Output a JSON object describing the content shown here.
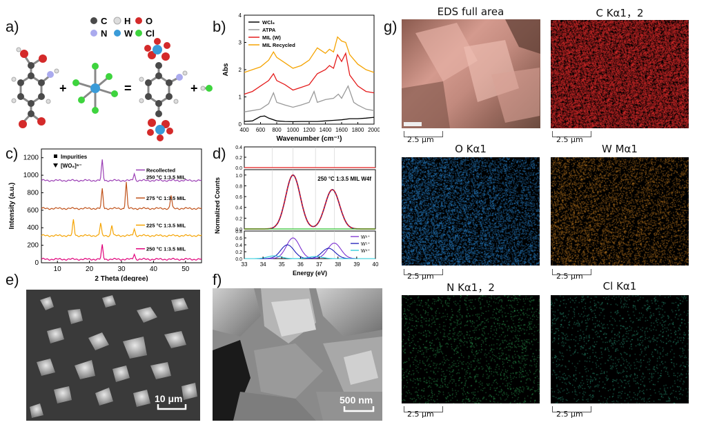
{
  "figure": {
    "panel_a": {
      "label": "a)",
      "legend": [
        {
          "symbol": "C",
          "color": "#4a4a4a"
        },
        {
          "symbol": "H",
          "color": "#e6e6e6"
        },
        {
          "symbol": "O",
          "color": "#d42a2a"
        },
        {
          "symbol": "N",
          "color": "#aaaaee"
        },
        {
          "symbol": "W",
          "color": "#3a9bd8"
        },
        {
          "symbol": "Cl",
          "color": "#3ed43e"
        }
      ],
      "ops": [
        "+",
        "=",
        "+"
      ]
    },
    "panel_b": {
      "label": "b)"
    },
    "panel_c": {
      "label": "c)"
    },
    "panel_d": {
      "label": "d)"
    },
    "panel_e": {
      "label": "e)",
      "scale": "10 μm"
    },
    "panel_f": {
      "label": "f)",
      "scale": "500 nm"
    },
    "panel_g": {
      "label": "g)",
      "maps": [
        {
          "title": "EDS full area",
          "scale": "2.5 μm"
        },
        {
          "title": "C Kα1，2",
          "scale": "2.5 μm"
        },
        {
          "title": "O Kα1",
          "scale": "2.5 μm"
        },
        {
          "title": "W Mα1",
          "scale": "2.5 μm"
        },
        {
          "title": "N Kα1，2",
          "scale": "2.5 μm"
        },
        {
          "title": "Cl Kα1",
          "scale": "2.5 μm"
        }
      ]
    }
  },
  "chart_data": [
    {
      "type": "line",
      "panel": "b",
      "xlabel": "Wavenumber (cm⁻¹)",
      "ylabel": "Abs",
      "xlim": [
        400,
        2000
      ],
      "ylim": [
        0,
        4
      ],
      "xticks": [
        400,
        600,
        800,
        1000,
        1200,
        1400,
        1600,
        1800,
        2000
      ],
      "yticks": [
        0,
        1,
        2,
        3,
        4
      ],
      "series": [
        {
          "name": "WCl₆",
          "color": "#000000",
          "x": [
            400,
            500,
            600,
            650,
            700,
            800,
            900,
            1000,
            1100,
            1200,
            1300,
            1400,
            1500,
            1600,
            1700,
            1800,
            1900,
            2000
          ],
          "y": [
            0.1,
            0.12,
            0.28,
            0.3,
            0.22,
            0.12,
            0.1,
            0.09,
            0.1,
            0.1,
            0.1,
            0.12,
            0.14,
            0.16,
            0.2,
            0.2,
            0.22,
            0.25
          ]
        },
        {
          "name": "ATPA",
          "color": "#999999",
          "x": [
            400,
            500,
            600,
            700,
            760,
            800,
            900,
            1000,
            1100,
            1200,
            1260,
            1300,
            1400,
            1500,
            1560,
            1600,
            1680,
            1750,
            1800,
            1900,
            2000
          ],
          "y": [
            0.45,
            0.5,
            0.55,
            0.75,
            1.15,
            0.8,
            0.7,
            0.62,
            0.7,
            0.8,
            1.2,
            0.8,
            0.9,
            0.95,
            1.1,
            0.95,
            1.4,
            0.8,
            0.7,
            0.55,
            0.5
          ]
        },
        {
          "name": "MIL (W)",
          "color": "#e41a1a",
          "x": [
            400,
            500,
            600,
            700,
            760,
            800,
            900,
            1000,
            1100,
            1200,
            1300,
            1400,
            1450,
            1500,
            1550,
            1600,
            1650,
            1700,
            1800,
            1900,
            2000
          ],
          "y": [
            1.1,
            1.2,
            1.4,
            1.6,
            1.85,
            1.6,
            1.45,
            1.25,
            1.35,
            1.45,
            1.85,
            2.0,
            2.15,
            2.05,
            2.55,
            2.3,
            2.6,
            1.8,
            1.4,
            1.2,
            1.15
          ]
        },
        {
          "name": "MIL Recycled",
          "color": "#f5a300",
          "x": [
            400,
            500,
            600,
            700,
            760,
            800,
            900,
            1000,
            1100,
            1200,
            1300,
            1400,
            1450,
            1500,
            1550,
            1600,
            1650,
            1700,
            1800,
            1900,
            2000
          ],
          "y": [
            1.9,
            2.0,
            2.1,
            2.35,
            2.65,
            2.45,
            2.25,
            2.05,
            2.15,
            2.35,
            2.8,
            2.6,
            2.75,
            2.65,
            3.2,
            3.05,
            3.0,
            2.55,
            2.2,
            2.0,
            1.9
          ]
        }
      ]
    },
    {
      "type": "line",
      "panel": "c",
      "xlabel": "2 Theta (degree)",
      "ylabel": "Intensity (a.u.)",
      "xlim": [
        5,
        55
      ],
      "ylim": [
        0,
        1300
      ],
      "xticks": [
        10,
        20,
        30,
        40,
        50
      ],
      "yticks": [
        0,
        200,
        400,
        600,
        800,
        1000,
        1200
      ],
      "legend_markers": [
        "Impurities",
        "[WO₆]⁶⁻"
      ],
      "series": [
        {
          "name": "250 °C 1:3.5 MIL",
          "color": "#e0007a",
          "baseline": 40,
          "peaks": [
            [
              24,
              160
            ],
            [
              34,
              60
            ]
          ]
        },
        {
          "name": "225 °C 1:3.5 MIL",
          "color": "#f5a300",
          "baseline": 310,
          "peaks": [
            [
              15,
              180
            ],
            [
              23.5,
              140
            ],
            [
              27,
              120
            ],
            [
              34,
              80
            ]
          ]
        },
        {
          "name": "275 °C 1:3.5 MIL",
          "color": "#c0521a",
          "baseline": 620,
          "peaks": [
            [
              24,
              220
            ],
            [
              31.5,
              300
            ],
            [
              45.5,
              150
            ]
          ]
        },
        {
          "name": "Recollected\n250 °C 1:3.5 MIL",
          "color": "#9b3fb5",
          "baseline": 940,
          "peaks": [
            [
              24,
              230
            ],
            [
              34,
              80
            ]
          ]
        }
      ]
    },
    {
      "type": "line",
      "panel": "d",
      "title": "250 °C 1:3.5 MIL W4f",
      "xlabel": "Energy (eV)",
      "ylabel": "Normalized Counts",
      "xlim": [
        33,
        40
      ],
      "xticks": [
        33,
        34,
        35,
        36,
        37,
        38,
        39,
        40
      ],
      "yticks_top": [
        0.0,
        0.2,
        0.4
      ],
      "yticks_main": [
        0.0,
        0.2,
        0.4,
        0.6,
        0.8,
        1.0
      ],
      "yticks_bottom": [
        0.0,
        0.2,
        0.4,
        0.6,
        0.8
      ],
      "series": [
        {
          "name": "W⁶⁺",
          "color": "#7b2fd0",
          "peaks": [
            [
              35.6,
              0.6
            ],
            [
              37.8,
              0.45
            ]
          ]
        },
        {
          "name": "W⁵⁺",
          "color": "#1a1ab8",
          "peaks": [
            [
              35.3,
              0.4
            ],
            [
              37.5,
              0.3
            ]
          ]
        },
        {
          "name": "W⁴⁺",
          "color": "#20c8d8",
          "peaks": [
            [
              34.6,
              0.08
            ],
            [
              36.8,
              0.06
            ]
          ]
        }
      ]
    }
  ]
}
